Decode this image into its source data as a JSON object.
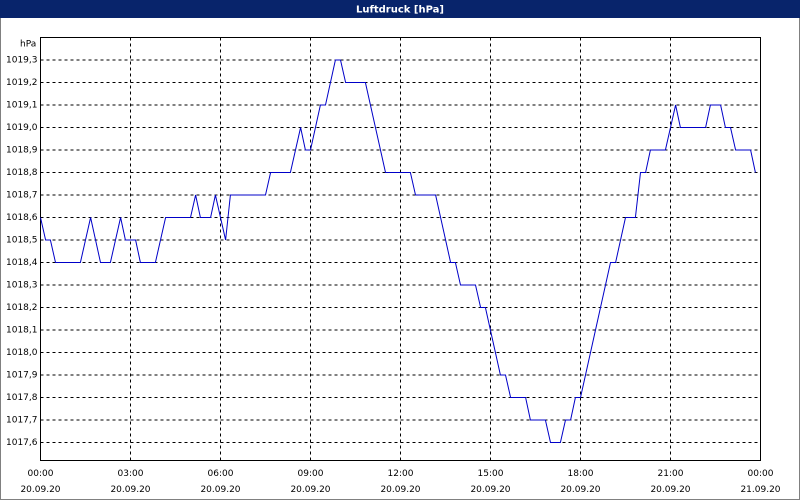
{
  "chart_data": {
    "type": "line",
    "title": "Luftdruck [hPa]",
    "ylabel": "hPa",
    "x": [
      0,
      0.17,
      0.33,
      0.5,
      1.33,
      1.67,
      2,
      2.33,
      2.67,
      2.83,
      3.17,
      3.33,
      3.83,
      4.17,
      5,
      5.17,
      5.33,
      5.67,
      5.83,
      6.17,
      6.33,
      7.5,
      7.67,
      8.33,
      8.67,
      8.83,
      9,
      9.33,
      9.5,
      9.83,
      10,
      10.17,
      10.83,
      11.5,
      12.33,
      12.5,
      13.17,
      13.67,
      13.83,
      14,
      14.5,
      14.67,
      14.83,
      15.33,
      15.5,
      15.67,
      16.17,
      16.33,
      16.83,
      17,
      17.33,
      17.5,
      17.67,
      17.83,
      18,
      19,
      19.17,
      19.5,
      19.83,
      20,
      20.17,
      20.33,
      20.83,
      21.17,
      21.33,
      22.17,
      22.33,
      22.67,
      22.83,
      23,
      23.17,
      23.67,
      23.83
    ],
    "values": [
      1018.6,
      1018.5,
      1018.5,
      1018.4,
      1018.4,
      1018.6,
      1018.4,
      1018.4,
      1018.6,
      1018.5,
      1018.5,
      1018.4,
      1018.4,
      1018.6,
      1018.6,
      1018.7,
      1018.6,
      1018.6,
      1018.7,
      1018.5,
      1018.7,
      1018.7,
      1018.8,
      1018.8,
      1019.0,
      1018.9,
      1018.9,
      1019.1,
      1019.1,
      1019.3,
      1019.3,
      1019.2,
      1019.2,
      1018.8,
      1018.8,
      1018.7,
      1018.7,
      1018.4,
      1018.4,
      1018.3,
      1018.3,
      1018.2,
      1018.2,
      1017.9,
      1017.9,
      1017.8,
      1017.8,
      1017.7,
      1017.7,
      1017.6,
      1017.6,
      1017.7,
      1017.7,
      1017.8,
      1017.8,
      1018.4,
      1018.4,
      1018.6,
      1018.6,
      1018.8,
      1018.8,
      1018.9,
      1018.9,
      1019.1,
      1019.0,
      1019.0,
      1019.1,
      1019.1,
      1019.0,
      1019.0,
      1018.9,
      1018.9,
      1018.8
    ],
    "color": "#0000c8",
    "xlim": [
      0,
      24
    ],
    "xticks": [
      {
        "value": 0,
        "label": "00:00"
      },
      {
        "value": 3,
        "label": "03:00"
      },
      {
        "value": 6,
        "label": "06:00"
      },
      {
        "value": 9,
        "label": "09:00"
      },
      {
        "value": 12,
        "label": "12:00"
      },
      {
        "value": 15,
        "label": "15:00"
      },
      {
        "value": 18,
        "label": "18:00"
      },
      {
        "value": 21,
        "label": "21:00"
      },
      {
        "value": 24,
        "label": "00:00"
      }
    ],
    "xtick_dates": [
      "20.09.20",
      "20.09.20",
      "20.09.20",
      "20.09.20",
      "20.09.20",
      "20.09.20",
      "20.09.20",
      "20.09.20",
      "21.09.20"
    ],
    "ylim": [
      1017.52,
      1019.4
    ],
    "yticks": [
      {
        "value": 1017.6,
        "label": "1017,6"
      },
      {
        "value": 1017.7,
        "label": "1017,7"
      },
      {
        "value": 1017.8,
        "label": "1017,8"
      },
      {
        "value": 1017.9,
        "label": "1017,9"
      },
      {
        "value": 1018.0,
        "label": "1018,0"
      },
      {
        "value": 1018.1,
        "label": "1018,1"
      },
      {
        "value": 1018.2,
        "label": "1018,2"
      },
      {
        "value": 1018.3,
        "label": "1018,3"
      },
      {
        "value": 1018.4,
        "label": "1018,4"
      },
      {
        "value": 1018.5,
        "label": "1018,5"
      },
      {
        "value": 1018.6,
        "label": "1018,6"
      },
      {
        "value": 1018.7,
        "label": "1018,7"
      },
      {
        "value": 1018.8,
        "label": "1018,8"
      },
      {
        "value": 1018.9,
        "label": "1018,9"
      },
      {
        "value": 1019.0,
        "label": "1019,0"
      },
      {
        "value": 1019.1,
        "label": "1019,1"
      },
      {
        "value": 1019.2,
        "label": "1019,2"
      },
      {
        "value": 1019.3,
        "label": "1019,3"
      }
    ],
    "grid": true
  }
}
